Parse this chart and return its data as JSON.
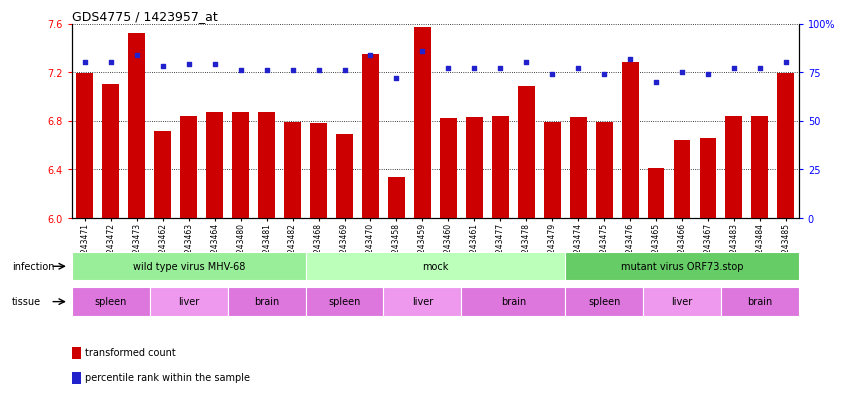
{
  "title": "GDS4775 / 1423957_at",
  "samples": [
    "GSM1243471",
    "GSM1243472",
    "GSM1243473",
    "GSM1243462",
    "GSM1243463",
    "GSM1243464",
    "GSM1243480",
    "GSM1243481",
    "GSM1243482",
    "GSM1243468",
    "GSM1243469",
    "GSM1243470",
    "GSM1243458",
    "GSM1243459",
    "GSM1243460",
    "GSM1243461",
    "GSM1243477",
    "GSM1243478",
    "GSM1243479",
    "GSM1243474",
    "GSM1243475",
    "GSM1243476",
    "GSM1243465",
    "GSM1243466",
    "GSM1243467",
    "GSM1243483",
    "GSM1243484",
    "GSM1243485"
  ],
  "bar_values": [
    7.19,
    7.1,
    7.52,
    6.72,
    6.84,
    6.87,
    6.87,
    6.87,
    6.79,
    6.78,
    6.69,
    7.35,
    6.34,
    7.57,
    6.82,
    6.83,
    6.84,
    7.09,
    6.79,
    6.83,
    6.79,
    7.28,
    6.41,
    6.64,
    6.66,
    6.84,
    6.84,
    7.19
  ],
  "percentile_values": [
    80,
    80,
    84,
    78,
    79,
    79,
    76,
    76,
    76,
    76,
    76,
    84,
    72,
    86,
    77,
    77,
    77,
    80,
    74,
    77,
    74,
    82,
    70,
    75,
    74,
    77,
    77,
    80
  ],
  "bar_color": "#cc0000",
  "percentile_color": "#2222cc",
  "ylim_left": [
    6.0,
    7.6
  ],
  "ylim_right": [
    0,
    100
  ],
  "yticks_left": [
    6.0,
    6.4,
    6.8,
    7.2,
    7.6
  ],
  "yticks_right": [
    0,
    25,
    50,
    75,
    100
  ],
  "infection_groups": [
    {
      "label": "wild type virus MHV-68",
      "start": 0,
      "end": 9,
      "color": "#99ee99"
    },
    {
      "label": "mock",
      "start": 9,
      "end": 19,
      "color": "#bbffbb"
    },
    {
      "label": "mutant virus ORF73.stop",
      "start": 19,
      "end": 28,
      "color": "#66cc66"
    }
  ],
  "tissue_groups": [
    {
      "label": "spleen",
      "start": 0,
      "end": 3,
      "color": "#dd77dd"
    },
    {
      "label": "liver",
      "start": 3,
      "end": 6,
      "color": "#ee99ee"
    },
    {
      "label": "brain",
      "start": 6,
      "end": 9,
      "color": "#dd77dd"
    },
    {
      "label": "spleen",
      "start": 9,
      "end": 12,
      "color": "#dd77dd"
    },
    {
      "label": "liver",
      "start": 12,
      "end": 15,
      "color": "#ee99ee"
    },
    {
      "label": "brain",
      "start": 15,
      "end": 19,
      "color": "#dd77dd"
    },
    {
      "label": "spleen",
      "start": 19,
      "end": 22,
      "color": "#dd77dd"
    },
    {
      "label": "liver",
      "start": 22,
      "end": 25,
      "color": "#ee99ee"
    },
    {
      "label": "brain",
      "start": 25,
      "end": 28,
      "color": "#dd77dd"
    }
  ],
  "legend_items": [
    {
      "label": "transformed count",
      "color": "#cc0000"
    },
    {
      "label": "percentile rank within the sample",
      "color": "#2222cc"
    }
  ],
  "background_color": "#ffffff"
}
